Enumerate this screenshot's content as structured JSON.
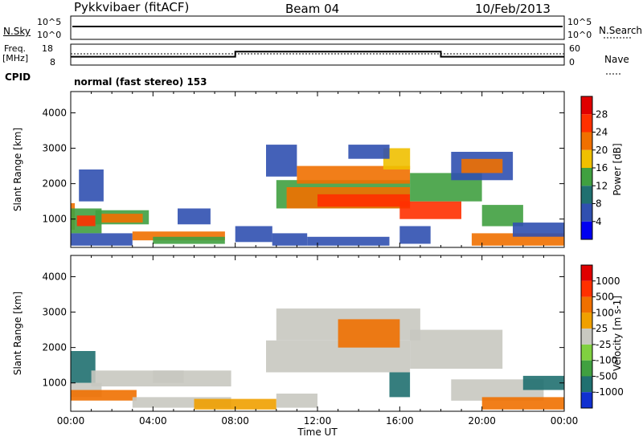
{
  "header": {
    "station": "Pykkvibaer (fitACF)",
    "beam": "Beam 04",
    "date": "10/Feb/2013"
  },
  "info_panels": {
    "nsky_label": "N.Sky",
    "nsky_ticks": [
      "10^5",
      "10^0"
    ],
    "nsearch_label": "N.Search",
    "nsearch_ticks": [
      "10^5",
      "10^0"
    ],
    "freq_label": "Freq.",
    "freq_unit": "[MHz]",
    "freq_ticks": [
      "18",
      "8"
    ],
    "nave_label": "Nave",
    "nave_ticks": [
      "60",
      "0"
    ],
    "cpid_label": "CPID",
    "cpid_text": "normal (fast stereo) 153"
  },
  "chart_data": [
    {
      "type": "heatmap",
      "name": "power",
      "ylabel": "Slant Range [km]",
      "xlabel": "",
      "xlim_hours": [
        0,
        24
      ],
      "ylim": [
        200,
        4600
      ],
      "yticks": [
        "1000",
        "2000",
        "3000",
        "4000"
      ],
      "xticks": [],
      "colorbar": {
        "label": "Power [dB]",
        "tick_labels": [
          "4",
          "8",
          "12",
          "16",
          "20",
          "24",
          "28"
        ],
        "colors": [
          "#0000f0",
          "#3050b0",
          "#207070",
          "#40a040",
          "#f0c000",
          "#f07000",
          "#ff3000",
          "#e00000"
        ]
      },
      "regions": [
        {
          "t": [
            0.0,
            0.2
          ],
          "r": [
            700,
            1450
          ],
          "v": "#f07000"
        },
        {
          "t": [
            0.0,
            1.5
          ],
          "r": [
            600,
            1300
          ],
          "v": "#40a040"
        },
        {
          "t": [
            0.3,
            1.2
          ],
          "r": [
            800,
            1100
          ],
          "v": "#ff3000"
        },
        {
          "t": [
            1.2,
            3.8
          ],
          "r": [
            850,
            1250
          ],
          "v": "#40a040"
        },
        {
          "t": [
            1.5,
            3.5
          ],
          "r": [
            900,
            1150
          ],
          "v": "#f07000"
        },
        {
          "t": [
            0.4,
            1.6
          ],
          "r": [
            1500,
            2400
          ],
          "v": "#3050b0"
        },
        {
          "t": [
            5.2,
            6.8
          ],
          "r": [
            850,
            1300
          ],
          "v": "#3050b0"
        },
        {
          "t": [
            0.0,
            3.0
          ],
          "r": [
            250,
            600
          ],
          "v": "#3050b0"
        },
        {
          "t": [
            3.0,
            7.5
          ],
          "r": [
            400,
            650
          ],
          "v": "#f07000"
        },
        {
          "t": [
            4.0,
            7.5
          ],
          "r": [
            300,
            500
          ],
          "v": "#40a040"
        },
        {
          "t": [
            8.0,
            9.8
          ],
          "r": [
            350,
            800
          ],
          "v": "#3050b0"
        },
        {
          "t": [
            9.8,
            11.5
          ],
          "r": [
            250,
            600
          ],
          "v": "#3050b0"
        },
        {
          "t": [
            9.5,
            11.0
          ],
          "r": [
            2200,
            3100
          ],
          "v": "#3050b0"
        },
        {
          "t": [
            10.0,
            16.5
          ],
          "r": [
            1300,
            2100
          ],
          "v": "#40a040"
        },
        {
          "t": [
            10.5,
            16.5
          ],
          "r": [
            1300,
            1900
          ],
          "v": "#f07000"
        },
        {
          "t": [
            12.0,
            16.5
          ],
          "r": [
            1350,
            1700
          ],
          "v": "#ff3000"
        },
        {
          "t": [
            11.0,
            16.5
          ],
          "r": [
            2000,
            2500
          ],
          "v": "#f07000"
        },
        {
          "t": [
            15.2,
            16.5
          ],
          "r": [
            2400,
            3000
          ],
          "v": "#f0c000"
        },
        {
          "t": [
            13.5,
            15.5
          ],
          "r": [
            2700,
            3100
          ],
          "v": "#3050b0"
        },
        {
          "t": [
            16.0,
            19.0
          ],
          "r": [
            1000,
            1500
          ],
          "v": "#ff3000"
        },
        {
          "t": [
            16.5,
            20.0
          ],
          "r": [
            1500,
            2300
          ],
          "v": "#40a040"
        },
        {
          "t": [
            18.5,
            21.5
          ],
          "r": [
            2100,
            2900
          ],
          "v": "#3050b0"
        },
        {
          "t": [
            19.0,
            21.0
          ],
          "r": [
            2300,
            2700
          ],
          "v": "#f07000"
        },
        {
          "t": [
            20.0,
            22.0
          ],
          "r": [
            800,
            1400
          ],
          "v": "#40a040"
        },
        {
          "t": [
            11.5,
            15.5
          ],
          "r": [
            250,
            500
          ],
          "v": "#3050b0"
        },
        {
          "t": [
            16.0,
            17.5
          ],
          "r": [
            300,
            800
          ],
          "v": "#3050b0"
        },
        {
          "t": [
            19.5,
            24.0
          ],
          "r": [
            250,
            600
          ],
          "v": "#f07000"
        },
        {
          "t": [
            21.5,
            24.0
          ],
          "r": [
            500,
            900
          ],
          "v": "#3050b0"
        }
      ]
    },
    {
      "type": "heatmap",
      "name": "velocity",
      "ylabel": "Slant Range [km]",
      "xlabel": "Time UT",
      "xlim_hours": [
        0,
        24
      ],
      "ylim": [
        200,
        4600
      ],
      "yticks": [
        "1000",
        "2000",
        "3000",
        "4000"
      ],
      "xticks": [
        "00:00",
        "04:00",
        "08:00",
        "12:00",
        "16:00",
        "20:00",
        "00:00"
      ],
      "colorbar": {
        "label": "Velocity [m s-1]",
        "tick_labels": [
          "1000",
          "500",
          "100",
          "25",
          "-25",
          "-100",
          "-500",
          "-1000"
        ],
        "colors": [
          "#1030d0",
          "#207070",
          "#40a040",
          "#80d040",
          "#c8c8c0",
          "#f0a000",
          "#f07000",
          "#ff3000",
          "#e00000"
        ]
      },
      "regions": [
        {
          "t": [
            0.0,
            1.2
          ],
          "r": [
            1000,
            1900
          ],
          "v": "#207070"
        },
        {
          "t": [
            0.0,
            1.5
          ],
          "r": [
            600,
            1000
          ],
          "v": "#c8c8c0"
        },
        {
          "t": [
            1.0,
            7.8
          ],
          "r": [
            900,
            1350
          ],
          "v": "#c8c8c0"
        },
        {
          "t": [
            0.0,
            3.2
          ],
          "r": [
            500,
            800
          ],
          "v": "#f07000"
        },
        {
          "t": [
            4.0,
            5.5
          ],
          "r": [
            1000,
            1350
          ],
          "v": "#c8c8c0"
        },
        {
          "t": [
            3.0,
            7.8
          ],
          "r": [
            300,
            600
          ],
          "v": "#c8c8c0"
        },
        {
          "t": [
            6.0,
            10.0
          ],
          "r": [
            250,
            550
          ],
          "v": "#f0a000"
        },
        {
          "t": [
            9.5,
            16.5
          ],
          "r": [
            1300,
            2200
          ],
          "v": "#c8c8c0"
        },
        {
          "t": [
            10.0,
            17.0
          ],
          "r": [
            2200,
            3100
          ],
          "v": "#c8c8c0"
        },
        {
          "t": [
            13.0,
            16.0
          ],
          "r": [
            2000,
            2800
          ],
          "v": "#f07000"
        },
        {
          "t": [
            15.5,
            16.5
          ],
          "r": [
            600,
            1300
          ],
          "v": "#207070"
        },
        {
          "t": [
            16.5,
            21.0
          ],
          "r": [
            1400,
            2500
          ],
          "v": "#c8c8c0"
        },
        {
          "t": [
            18.5,
            23.0
          ],
          "r": [
            500,
            1100
          ],
          "v": "#c8c8c0"
        },
        {
          "t": [
            20.0,
            24.0
          ],
          "r": [
            250,
            600
          ],
          "v": "#f07000"
        },
        {
          "t": [
            22.0,
            24.0
          ],
          "r": [
            800,
            1200
          ],
          "v": "#207070"
        },
        {
          "t": [
            10.0,
            12.0
          ],
          "r": [
            300,
            700
          ],
          "v": "#c8c8c0"
        }
      ]
    }
  ],
  "freq_trace": [
    [
      0,
      12
    ],
    [
      3,
      12
    ],
    [
      8,
      12
    ],
    [
      8,
      15
    ],
    [
      18,
      15
    ],
    [
      18,
      12
    ],
    [
      24,
      12
    ]
  ],
  "nave_trace": [
    [
      0,
      11
    ],
    [
      24,
      11
    ]
  ]
}
